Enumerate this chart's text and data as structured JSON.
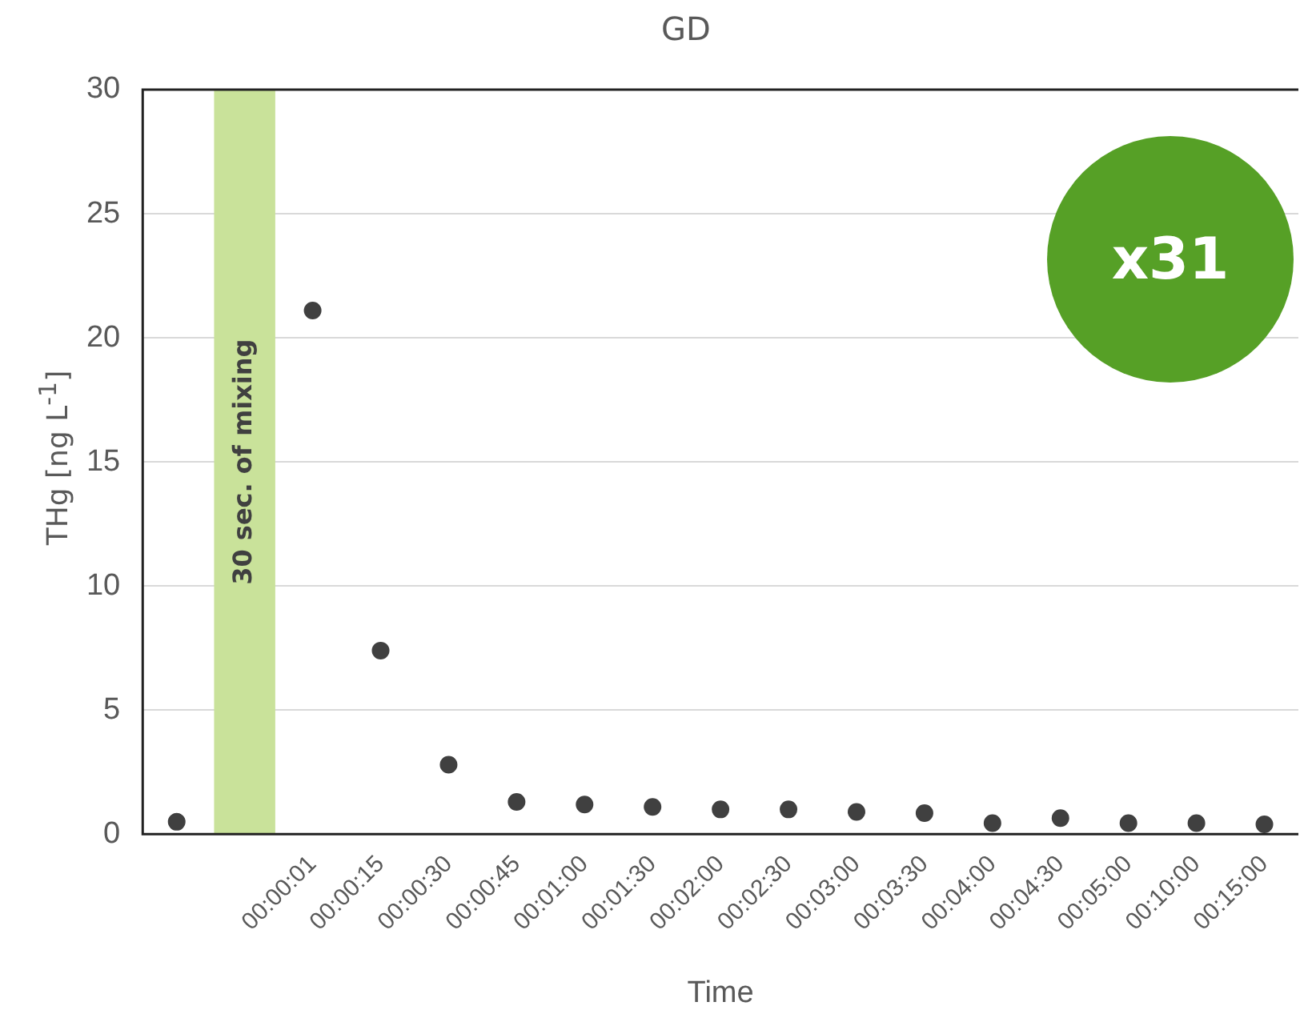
{
  "chart_data": {
    "type": "scatter",
    "title": "GD",
    "xlabel": "Time",
    "ylabel": "THg [ng L$^{-1}$]",
    "categories": [
      null,
      null,
      "00:00:01",
      "00:00:15",
      "00:00:30",
      "00:00:45",
      "00:01:00",
      "00:01:30",
      "00:02:00",
      "00:02:30",
      "00:03:00",
      "00:03:30",
      "00:04:00",
      "00:04:30",
      "00:05:00",
      "00:10:00",
      "00:15:00"
    ],
    "series": [
      {
        "type": "bar",
        "color": "#c9e29a",
        "values": [
          null,
          30,
          null,
          null,
          null,
          null,
          null,
          null,
          null,
          null,
          null,
          null,
          null,
          null,
          null,
          null,
          null
        ]
      },
      {
        "color": "#404040",
        "values": [
          0.5,
          null,
          21.1,
          7.4,
          2.8,
          1.3,
          1.2,
          1.1,
          1.0,
          1.0,
          0.9,
          0.85,
          0.45,
          0.65,
          0.45,
          0.45,
          0.4
        ]
      }
    ],
    "ylim": [
      0,
      30
    ],
    "yticks": [
      0,
      5,
      10,
      15,
      20,
      25,
      30
    ],
    "grid": "y",
    "legend": false,
    "marker": "circle",
    "annotations": [
      "x31",
      "30 sec. of mixing"
    ]
  }
}
